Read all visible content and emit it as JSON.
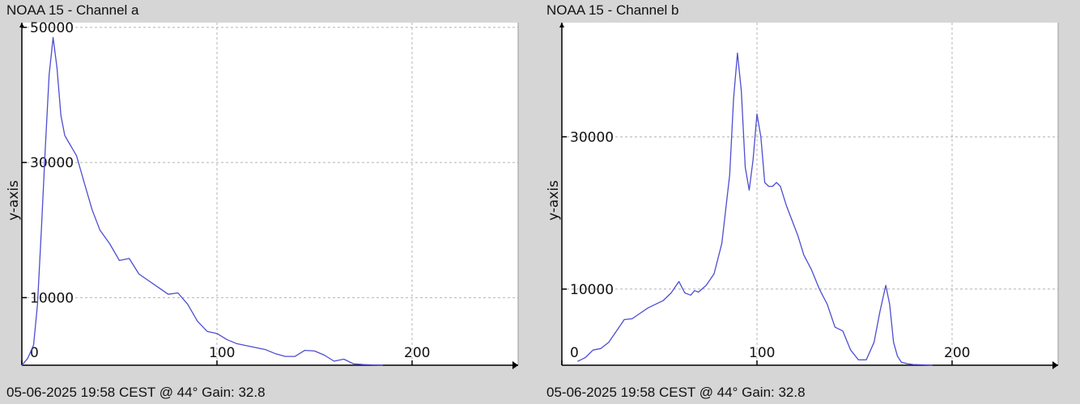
{
  "panels": [
    {
      "title": "NOAA 15 - Channel a",
      "footer": "05-06-2025 19:58 CEST @ 44° Gain: 32.8"
    },
    {
      "title": "NOAA 15 - Channel b",
      "footer": "05-06-2025 19:58 CEST @ 44° Gain: 32.8"
    }
  ],
  "chart_data": [
    {
      "type": "line",
      "title": "NOAA 15 - Channel a",
      "xlabel": "",
      "ylabel": "y-axis",
      "xlim": [
        0,
        255
      ],
      "ylim": [
        0,
        50700
      ],
      "x_ticks": [
        0,
        100,
        200
      ],
      "y_ticks": [
        10000,
        30000,
        50000
      ],
      "y_tick_labels": [
        "10000",
        "30000",
        "50000"
      ],
      "x_tick_labels": [
        "0",
        "100",
        "200"
      ],
      "grid": true,
      "series_color": "#4d4dd0",
      "series": [
        {
          "x": [
            0,
            3,
            6,
            8,
            10,
            12,
            14,
            16,
            18,
            20,
            22,
            24,
            26,
            28,
            30,
            33,
            36,
            40,
            45,
            50,
            55,
            60,
            65,
            70,
            75,
            80,
            85,
            90,
            95,
            100,
            105,
            110,
            115,
            120,
            125,
            130,
            135,
            140,
            145,
            150,
            155,
            160,
            165,
            170,
            175,
            180,
            182,
            185
          ],
          "values": [
            0,
            1000,
            3000,
            9000,
            20000,
            32000,
            43000,
            48500,
            44000,
            37000,
            34000,
            33000,
            32000,
            31000,
            29000,
            26000,
            23000,
            20000,
            18000,
            15500,
            15800,
            13500,
            12500,
            11500,
            10500,
            10700,
            9000,
            6500,
            5000,
            4700,
            3800,
            3200,
            2900,
            2600,
            2300,
            1700,
            1300,
            1300,
            2200,
            2100,
            1500,
            600,
            900,
            200,
            100,
            50,
            30,
            0
          ]
        }
      ]
    },
    {
      "type": "line",
      "title": "NOAA 15 - Channel b",
      "xlabel": "",
      "ylabel": "y-axis",
      "xlim": [
        0,
        255
      ],
      "ylim": [
        0,
        45000
      ],
      "x_ticks": [
        0,
        100,
        200
      ],
      "y_ticks": [
        10000,
        30000
      ],
      "y_tick_labels": [
        "10000",
        "30000"
      ],
      "x_tick_labels": [
        "0",
        "100",
        "200"
      ],
      "grid": true,
      "series_color": "#4d4dd0",
      "series": [
        {
          "x": [
            8,
            12,
            16,
            20,
            24,
            28,
            32,
            36,
            40,
            44,
            48,
            52,
            56,
            60,
            63,
            66,
            68,
            70,
            74,
            78,
            82,
            86,
            88,
            90,
            92,
            94,
            96,
            98,
            100,
            102,
            104,
            106,
            108,
            110,
            112,
            115,
            118,
            121,
            124,
            128,
            132,
            136,
            140,
            144,
            148,
            152,
            156,
            160,
            163,
            166,
            168,
            170,
            172,
            174,
            177,
            180,
            185,
            190
          ],
          "values": [
            500,
            1000,
            2000,
            2200,
            3000,
            4500,
            6000,
            6100,
            6800,
            7500,
            8000,
            8500,
            9500,
            11000,
            9500,
            9200,
            9800,
            9600,
            10500,
            12000,
            16000,
            25000,
            35000,
            41000,
            36000,
            26000,
            23000,
            27000,
            33000,
            30000,
            24000,
            23500,
            23500,
            24000,
            23500,
            21000,
            19000,
            17000,
            14500,
            12500,
            10000,
            8000,
            5000,
            4500,
            2000,
            700,
            700,
            3000,
            7000,
            10500,
            8000,
            3000,
            1200,
            400,
            200,
            100,
            50,
            0
          ]
        }
      ]
    }
  ]
}
